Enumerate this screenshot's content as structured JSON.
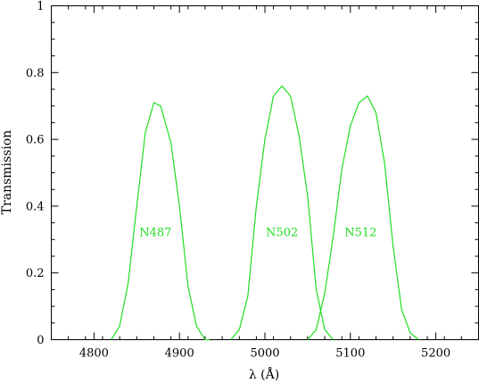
{
  "chart_data": {
    "type": "line",
    "xlabel": "λ (Å)",
    "ylabel": "Transmission",
    "xlim": [
      4750,
      5250
    ],
    "ylim": [
      0,
      1
    ],
    "xticks_major": [
      4800,
      4900,
      5000,
      5100,
      5200
    ],
    "xticks_minor_step": 20,
    "yticks_major": [
      0,
      0.2,
      0.4,
      0.6,
      0.8,
      1
    ],
    "yticks_labels": [
      "0",
      "0.2",
      "0.4",
      "0.6",
      "0.8",
      "1"
    ],
    "yticks_minor_step": 0.05,
    "grid": false,
    "line_color": "#22dd22",
    "series": [
      {
        "name": "N487",
        "label_pos": [
          4872,
          0.31
        ],
        "x": [
          4820,
          4830,
          4840,
          4850,
          4860,
          4870,
          4878,
          4890,
          4900,
          4910,
          4920,
          4930,
          4935
        ],
        "y": [
          0.0,
          0.04,
          0.17,
          0.4,
          0.62,
          0.71,
          0.7,
          0.59,
          0.4,
          0.16,
          0.04,
          0.0,
          0.0
        ]
      },
      {
        "name": "N502",
        "label_pos": [
          5020,
          0.31
        ],
        "x": [
          4960,
          4970,
          4980,
          4990,
          5000,
          5010,
          5020,
          5030,
          5040,
          5050,
          5060,
          5070,
          5080
        ],
        "y": [
          0.0,
          0.03,
          0.13,
          0.4,
          0.6,
          0.73,
          0.76,
          0.73,
          0.61,
          0.43,
          0.15,
          0.03,
          0.0
        ]
      },
      {
        "name": "N512",
        "label_pos": [
          5112,
          0.31
        ],
        "x": [
          5050,
          5060,
          5070,
          5080,
          5090,
          5100,
          5110,
          5120,
          5130,
          5140,
          5150,
          5160,
          5170,
          5180
        ],
        "y": [
          0.0,
          0.03,
          0.14,
          0.31,
          0.51,
          0.64,
          0.71,
          0.73,
          0.68,
          0.53,
          0.28,
          0.09,
          0.02,
          0.0
        ]
      }
    ]
  }
}
